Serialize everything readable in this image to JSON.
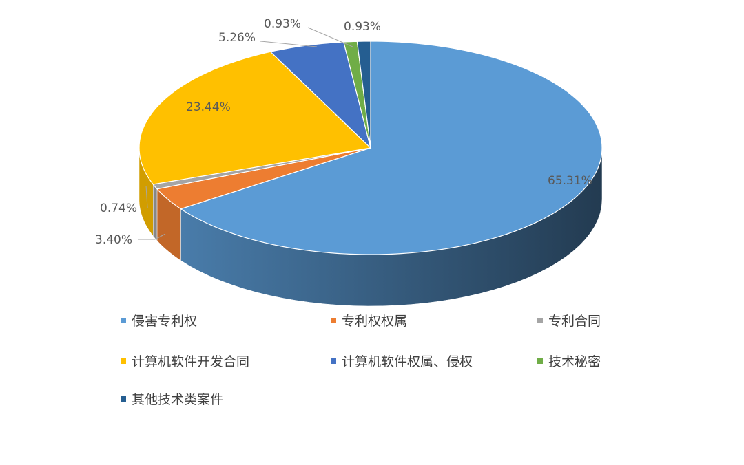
{
  "chart_data": {
    "type": "pie",
    "style": "3d",
    "title": "",
    "legend_position": "bottom",
    "categories": [
      "侵害专利权",
      "专利权权属",
      "专利合同",
      "计算机软件开发合同",
      "计算机软件权属、侵权",
      "技术秘密",
      "其他技术类案件"
    ],
    "values": [
      65.31,
      3.4,
      0.74,
      23.44,
      5.26,
      0.93,
      0.93
    ],
    "data_labels": [
      "65.31%",
      "3.40%",
      "0.74%",
      "23.44%",
      "5.26%",
      "0.93%",
      "0.93%"
    ],
    "colors": [
      "#5b9bd5",
      "#ed7d31",
      "#a5a5a5",
      "#ffc000",
      "#4472c4",
      "#70ad47",
      "#255e91"
    ]
  }
}
